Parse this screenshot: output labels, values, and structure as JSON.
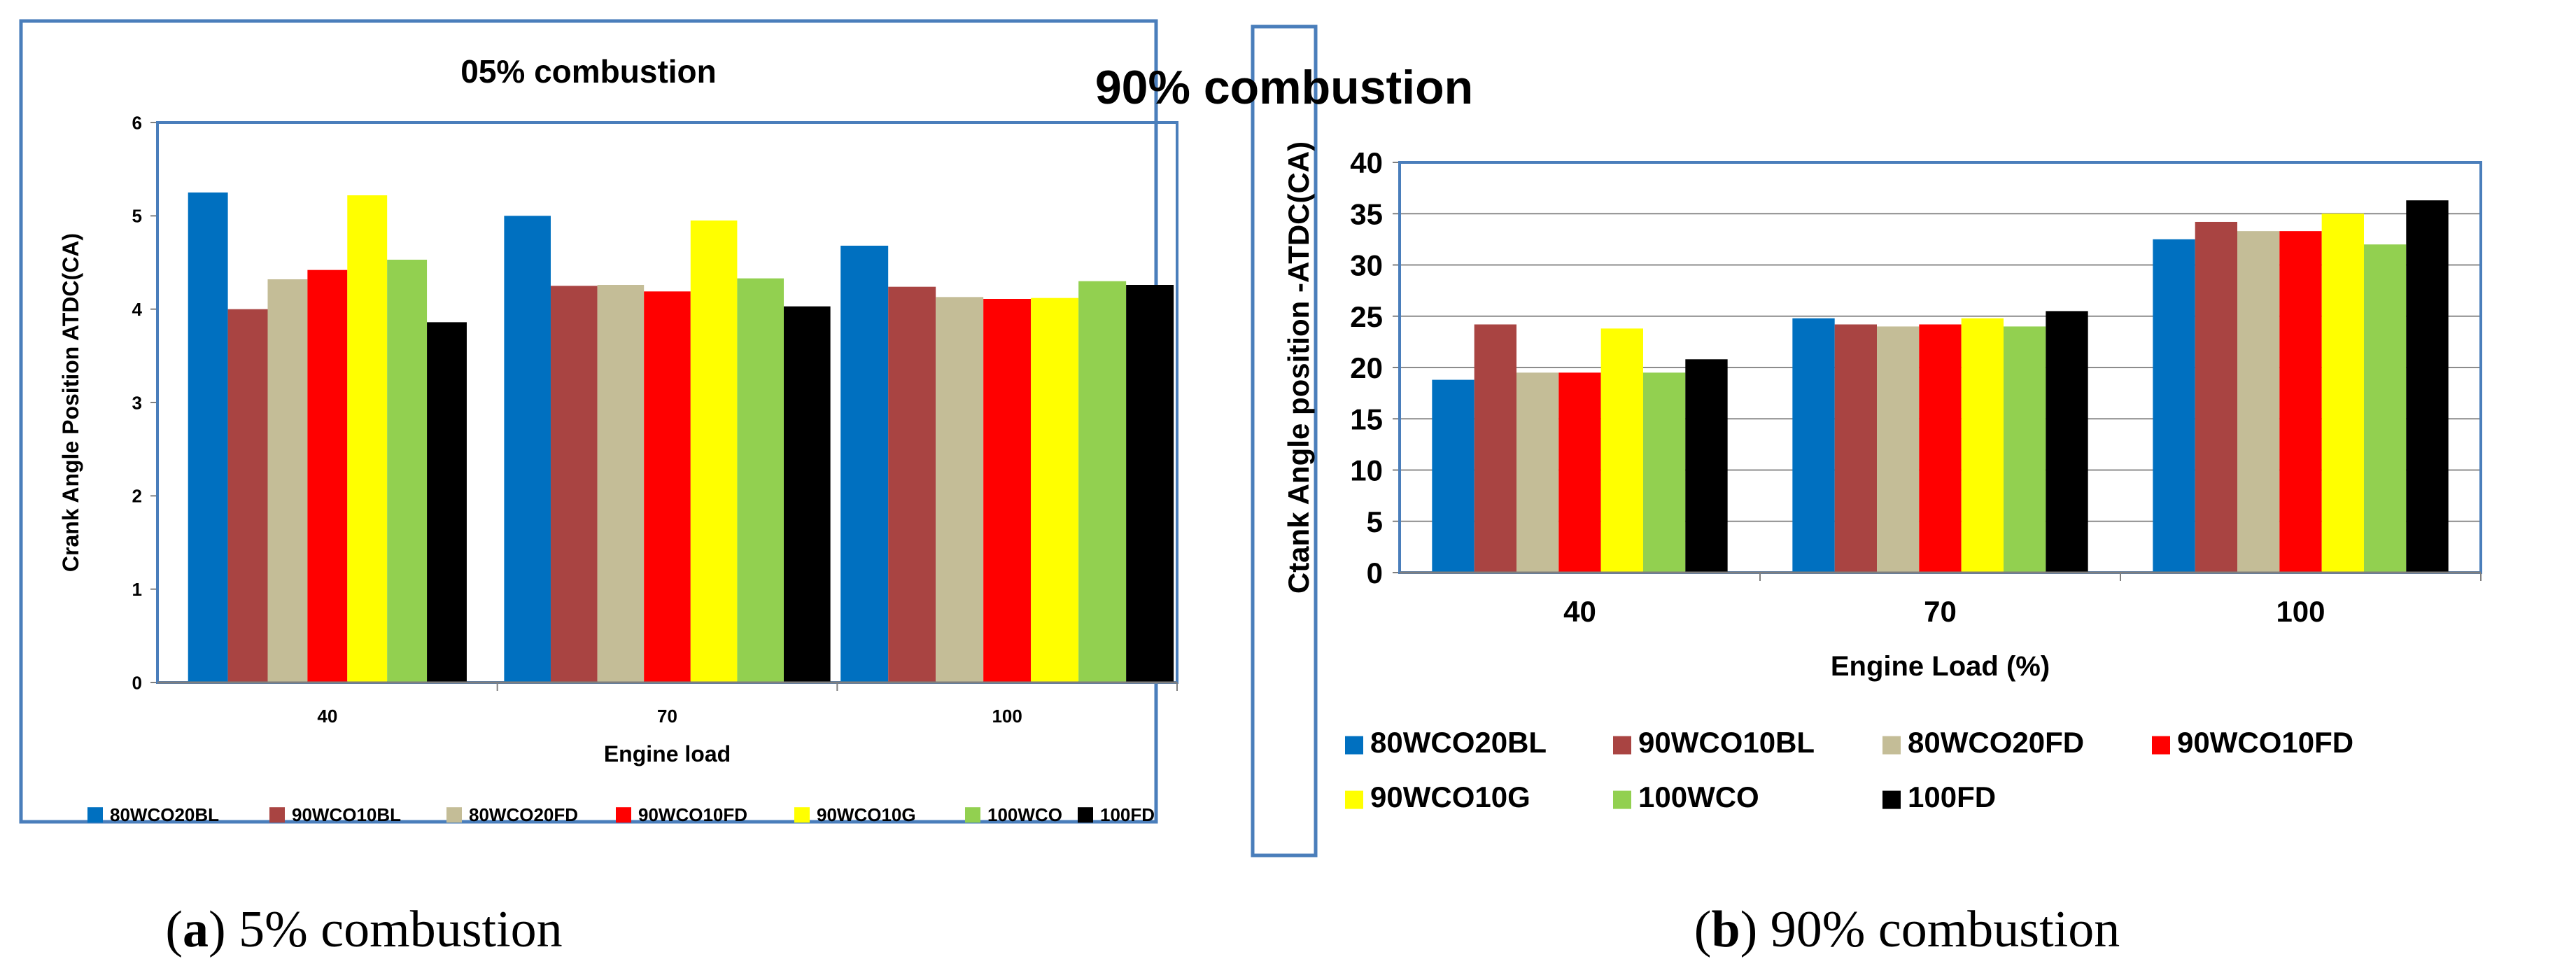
{
  "chart_data": [
    {
      "type": "bar",
      "title": "05% combustion",
      "xlabel": "Engine load",
      "ylabel": "Crank Angle Position ATDC(CA)",
      "ylim": [
        0,
        6
      ],
      "yticks": [
        "0",
        "1",
        "2",
        "3",
        "4",
        "5",
        "6"
      ],
      "categories": [
        "40",
        "70",
        "100"
      ],
      "legend": "bottom",
      "grid": false,
      "series": [
        {
          "name": "80WCO20BL",
          "color": "#0070C0",
          "values": [
            5.25,
            5.0,
            4.68
          ]
        },
        {
          "name": "90WCO10BL",
          "color": "#A94442",
          "values": [
            4.0,
            4.25,
            4.24
          ]
        },
        {
          "name": "80WCO20FD",
          "color": "#C4BD97",
          "values": [
            4.32,
            4.26,
            4.13
          ]
        },
        {
          "name": "90WCO10FD",
          "color": "#FF0000",
          "values": [
            4.42,
            4.19,
            4.11
          ]
        },
        {
          "name": "90WCO10G",
          "color": "#FFFF00",
          "values": [
            5.22,
            4.95,
            4.12
          ]
        },
        {
          "name": "100WCO",
          "color": "#92D050",
          "values": [
            4.53,
            4.33,
            4.3
          ]
        },
        {
          "name": "100FD",
          "color": "#000000",
          "values": [
            3.86,
            4.03,
            4.26
          ]
        }
      ],
      "caption_label": "a",
      "caption_text": ") 5% combustion"
    },
    {
      "type": "bar",
      "title": "90% combustion",
      "xlabel": "Engine Load (%)",
      "ylabel": "Ctank Angle position -ATDC(CA)",
      "ylim": [
        0,
        40
      ],
      "yticks": [
        "0",
        "5",
        "10",
        "15",
        "20",
        "25",
        "30",
        "35",
        "40"
      ],
      "categories": [
        "40",
        "70",
        "100"
      ],
      "legend": "bottom",
      "grid": true,
      "series": [
        {
          "name": "80WCO20BL",
          "color": "#0070C0",
          "values": [
            18.8,
            24.8,
            32.5
          ]
        },
        {
          "name": "90WCO10BL",
          "color": "#A94442",
          "values": [
            24.2,
            24.2,
            34.2
          ]
        },
        {
          "name": "80WCO20FD",
          "color": "#C4BD97",
          "values": [
            19.5,
            24.0,
            33.3
          ]
        },
        {
          "name": "90WCO10FD",
          "color": "#FF0000",
          "values": [
            19.5,
            24.2,
            33.3
          ]
        },
        {
          "name": "90WCO10G",
          "color": "#FFFF00",
          "values": [
            23.8,
            24.8,
            35.0
          ]
        },
        {
          "name": "100WCO",
          "color": "#92D050",
          "values": [
            19.5,
            24.0,
            32.0
          ]
        },
        {
          "name": "100FD",
          "color": "#000000",
          "values": [
            20.8,
            25.5,
            36.3
          ]
        }
      ],
      "caption_label": "b",
      "caption_text": ") 90% combustion"
    }
  ],
  "colors": {
    "frame": "#4A7EBB",
    "axis": "#7F7F7F",
    "grid": "#8C8C8C"
  }
}
